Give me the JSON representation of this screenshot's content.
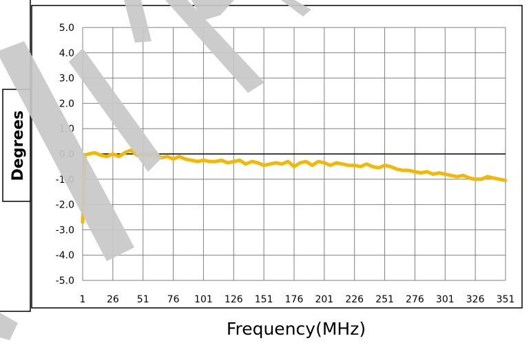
{
  "chart_data": {
    "type": "line",
    "title": "",
    "xlabel": "Frequency(MHz)",
    "ylabel": "Degrees",
    "x_tick_labels": [
      "1",
      "26",
      "51",
      "76",
      "101",
      "126",
      "151",
      "176",
      "201",
      "226",
      "251",
      "276",
      "301",
      "326",
      "351"
    ],
    "y_tick_labels": [
      "5.0",
      "4.0",
      "3.0",
      "2.0",
      "1.0",
      "0.0",
      "-1.0",
      "-2.0",
      "-3.0",
      "-4.0",
      "-5.0"
    ],
    "xlim": [
      1,
      351
    ],
    "ylim": [
      -5,
      5
    ],
    "grid": true,
    "legend": "none",
    "colors": {
      "series": "#f5b800",
      "grid": "#7f7f7f",
      "zero_line": "#000000",
      "frame": "#000000",
      "watermark": "#c8c8c8"
    },
    "series": [
      {
        "x": [
          1,
          3,
          6,
          11,
          16,
          21,
          26,
          31,
          36,
          41,
          46,
          51,
          56,
          61,
          66,
          71,
          76,
          81,
          86,
          91,
          96,
          101,
          106,
          111,
          116,
          121,
          126,
          131,
          136,
          141,
          146,
          151,
          156,
          161,
          166,
          171,
          176,
          181,
          186,
          191,
          196,
          201,
          206,
          211,
          216,
          221,
          226,
          231,
          236,
          241,
          246,
          251,
          256,
          261,
          266,
          271,
          276,
          281,
          286,
          291,
          296,
          301,
          306,
          311,
          316,
          321,
          326,
          331,
          336,
          341,
          346,
          351
        ],
        "values": [
          -2.7,
          -0.05,
          0.0,
          0.05,
          -0.05,
          -0.1,
          0.0,
          -0.1,
          0.05,
          0.15,
          -0.05,
          0.0,
          -0.05,
          0.05,
          -0.15,
          -0.1,
          -0.2,
          -0.1,
          -0.2,
          -0.25,
          -0.3,
          -0.25,
          -0.3,
          -0.3,
          -0.25,
          -0.35,
          -0.3,
          -0.25,
          -0.4,
          -0.3,
          -0.35,
          -0.45,
          -0.4,
          -0.35,
          -0.4,
          -0.3,
          -0.5,
          -0.35,
          -0.3,
          -0.45,
          -0.3,
          -0.35,
          -0.45,
          -0.35,
          -0.4,
          -0.45,
          -0.45,
          -0.5,
          -0.4,
          -0.5,
          -0.55,
          -0.45,
          -0.5,
          -0.6,
          -0.65,
          -0.65,
          -0.7,
          -0.75,
          -0.7,
          -0.8,
          -0.75,
          -0.8,
          -0.85,
          -0.9,
          -0.85,
          -0.95,
          -1.0,
          -1.0,
          -0.9,
          -0.95,
          -1.0,
          -1.05
        ]
      }
    ]
  }
}
